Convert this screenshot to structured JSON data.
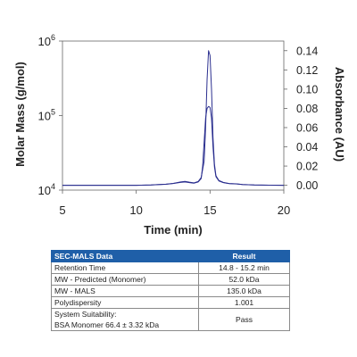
{
  "chart_data": {
    "type": "line",
    "xlabel": "Time (min)",
    "ylabel": "Molar Mass (g/mol)",
    "y2label": "Absorbance (AU)",
    "xlim": [
      5,
      20
    ],
    "x_ticks": [
      5,
      10,
      15,
      20
    ],
    "y_scale": "log",
    "ylim": [
      10000,
      1000000
    ],
    "y_ticks": [
      {
        "value": 10000,
        "base": "10",
        "exp": "4"
      },
      {
        "value": 100000,
        "base": "10",
        "exp": "5"
      },
      {
        "value": 1000000,
        "base": "10",
        "exp": "6"
      }
    ],
    "y2lim": [
      -0.005,
      0.15
    ],
    "y2_ticks": [
      "0.00",
      "0.02",
      "0.04",
      "0.06",
      "0.08",
      "0.10",
      "0.12",
      "0.14"
    ],
    "grid": false,
    "legend": "none",
    "series": [
      {
        "axis": "right",
        "color": "#2b2f8f",
        "x": [
          5.0,
          8.0,
          10.0,
          11.0,
          11.5,
          12.0,
          12.5,
          13.0,
          13.3,
          13.6,
          13.9,
          14.2,
          14.4,
          14.6,
          14.7,
          14.8,
          14.9,
          15.0,
          15.1,
          15.2,
          15.3,
          15.4,
          15.6,
          15.9,
          16.3,
          16.8,
          17.2,
          17.6,
          18.0,
          19.0,
          20.0
        ],
        "y": [
          0.0,
          0.0,
          0.0,
          0.0003,
          0.0008,
          0.0012,
          0.002,
          0.0035,
          0.004,
          0.0032,
          0.0025,
          0.004,
          0.008,
          0.025,
          0.06,
          0.11,
          0.14,
          0.135,
          0.1,
          0.05,
          0.022,
          0.01,
          0.005,
          0.003,
          0.0018,
          0.0015,
          0.0008,
          0.0006,
          0.0003,
          0.0001,
          0.0
        ]
      },
      {
        "axis": "right",
        "color": "#2b2f8f",
        "x": [
          5.0,
          8.0,
          10.0,
          11.0,
          12.0,
          12.5,
          13.0,
          13.3,
          13.6,
          13.9,
          14.2,
          14.4,
          14.5,
          14.6,
          14.7,
          14.8,
          14.9,
          15.0,
          15.1,
          15.2,
          15.3,
          15.4,
          15.6,
          15.9,
          16.3,
          16.8,
          17.2,
          17.6,
          18.0,
          19.0,
          20.0
        ],
        "y": [
          0.0,
          0.0,
          0.0,
          0.0003,
          0.001,
          0.0018,
          0.003,
          0.0035,
          0.0028,
          0.0022,
          0.0035,
          0.007,
          0.02,
          0.045,
          0.07,
          0.08,
          0.082,
          0.081,
          0.07,
          0.04,
          0.019,
          0.009,
          0.0045,
          0.0028,
          0.0017,
          0.0014,
          0.0008,
          0.0006,
          0.0003,
          0.0001,
          0.0
        ]
      }
    ]
  },
  "table": {
    "headers": [
      "SEC-MALS Data",
      "Result"
    ],
    "rows": [
      {
        "label": "Retention Time",
        "value": "14.8 - 15.2 min"
      },
      {
        "label": "MW - Predicted (Monomer)",
        "value": "52.0 kDa"
      },
      {
        "label": "MW - MALS",
        "value": "135.0 kDa"
      },
      {
        "label": "Polydispersity",
        "value": "1.001"
      }
    ],
    "last_row": {
      "label_line1": "System Suitability:",
      "label_line2": "BSA Monomer 66.4 ± 3.32 kDa",
      "value": "Pass"
    }
  }
}
